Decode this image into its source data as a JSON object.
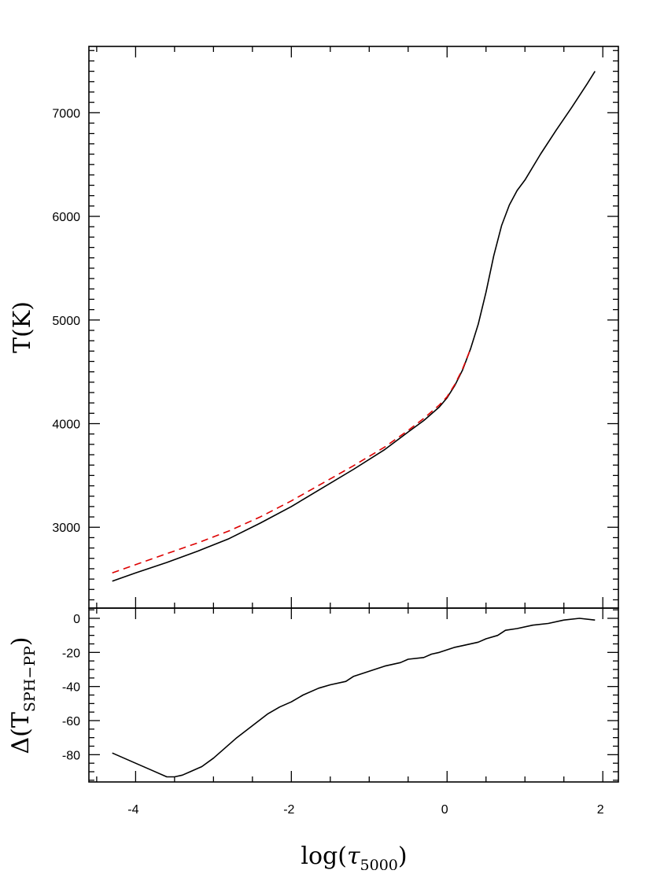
{
  "chart_data": [
    {
      "type": "line",
      "panel": "top",
      "ylabel": "T(K)",
      "xlim": [
        -4.6,
        2.2
      ],
      "ylim": [
        2220,
        7640
      ],
      "yticks": [
        "3000",
        "4000",
        "5000",
        "6000",
        "7000"
      ],
      "grid": false,
      "series": [
        {
          "color": "#000000",
          "dash": "solid",
          "x": [
            -4.3,
            -4.0,
            -3.6,
            -3.2,
            -2.8,
            -2.4,
            -2.0,
            -1.6,
            -1.2,
            -0.8,
            -0.5,
            -0.3,
            -0.1,
            0.0,
            0.1,
            0.2,
            0.3,
            0.4,
            0.5,
            0.6,
            0.7,
            0.8,
            0.9,
            1.0,
            1.2,
            1.4,
            1.6,
            1.8,
            1.9
          ],
          "y": [
            2480,
            2560,
            2660,
            2770,
            2890,
            3040,
            3200,
            3380,
            3560,
            3750,
            3920,
            4030,
            4160,
            4250,
            4370,
            4520,
            4720,
            4960,
            5270,
            5620,
            5910,
            6110,
            6250,
            6350,
            6600,
            6830,
            7050,
            7280,
            7400
          ]
        },
        {
          "color": "#dd0000",
          "dash": "dashed",
          "x": [
            -4.3,
            -4.0,
            -3.6,
            -3.2,
            -2.8,
            -2.4,
            -2.0,
            -1.6,
            -1.2,
            -0.8,
            -0.5,
            -0.3,
            -0.1,
            0.0,
            0.1,
            0.2,
            0.3
          ],
          "y": [
            2560,
            2640,
            2745,
            2850,
            2965,
            3100,
            3255,
            3425,
            3595,
            3775,
            3935,
            4050,
            4180,
            4260,
            4380,
            4530,
            4720
          ]
        }
      ]
    },
    {
      "type": "line",
      "panel": "bottom",
      "xlabel": "log(τ5000)",
      "ylabel": "Δ(TSPH−PP)",
      "xlim": [
        -4.6,
        2.2
      ],
      "ylim": [
        -96,
        6
      ],
      "xticks": [
        "-4",
        "-2",
        "0",
        "2"
      ],
      "yticks": [
        "0",
        "-20",
        "-40",
        "-60",
        "-80"
      ],
      "grid": false,
      "series": [
        {
          "color": "#000000",
          "dash": "solid",
          "x": [
            -4.3,
            -4.0,
            -3.8,
            -3.6,
            -3.5,
            -3.4,
            -3.3,
            -3.15,
            -3.0,
            -2.85,
            -2.7,
            -2.5,
            -2.3,
            -2.15,
            -2.0,
            -1.85,
            -1.65,
            -1.5,
            -1.3,
            -1.2,
            -1.0,
            -0.8,
            -0.6,
            -0.5,
            -0.3,
            -0.2,
            -0.1,
            0.1,
            0.2,
            0.4,
            0.5,
            0.65,
            0.75,
            0.9,
            1.1,
            1.3,
            1.5,
            1.7,
            1.9
          ],
          "y": [
            -79,
            -85,
            -89,
            -93,
            -93,
            -92,
            -90,
            -87,
            -82,
            -76,
            -70,
            -63,
            -56,
            -52,
            -49,
            -45,
            -41,
            -39,
            -37,
            -34,
            -31,
            -28,
            -26,
            -24,
            -23,
            -21,
            -20,
            -17,
            -16,
            -14,
            -12,
            -10,
            -7,
            -6,
            -4,
            -3,
            -1,
            0,
            -1
          ]
        }
      ]
    }
  ]
}
